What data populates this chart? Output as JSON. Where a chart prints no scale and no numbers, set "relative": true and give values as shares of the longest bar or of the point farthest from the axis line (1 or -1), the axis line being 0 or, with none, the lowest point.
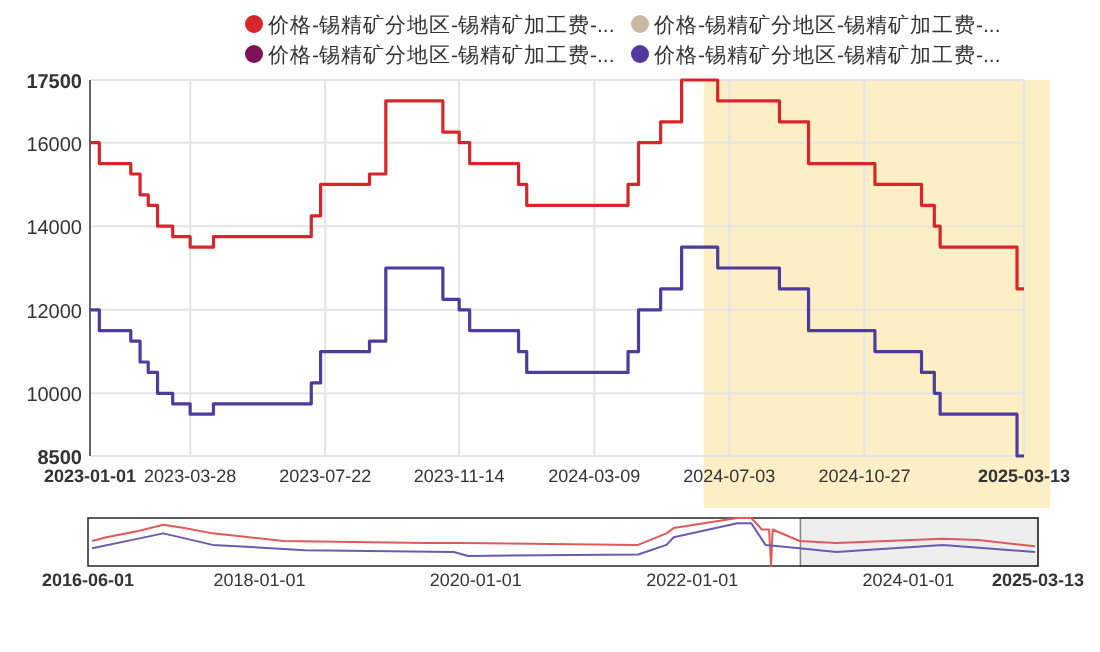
{
  "chart_data": [
    {
      "type": "step",
      "legend": "top",
      "grid": true,
      "marker": "none",
      "xlim": [
        "2023-01-01",
        "2025-03-13"
      ],
      "ylim": [
        8500,
        17500
      ],
      "xticks": [
        "2023-01-01",
        "2023-03-28",
        "2023-07-22",
        "2023-11-14",
        "2024-03-09",
        "2024-07-03",
        "2024-10-27",
        "2025-03-13"
      ],
      "yticks": [
        8500,
        10000,
        12000,
        14000,
        16000,
        17500
      ],
      "x": [
        "2023-01-01",
        "2023-01-09",
        "2023-02-05",
        "2023-02-13",
        "2023-02-20",
        "2023-02-28",
        "2023-03-13",
        "2023-03-28",
        "2023-04-17",
        "2023-07-10",
        "2023-07-18",
        "2023-08-29",
        "2023-09-12",
        "2023-10-31",
        "2023-11-14",
        "2023-11-23",
        "2024-01-04",
        "2024-01-11",
        "2024-04-07",
        "2024-04-16",
        "2024-05-05",
        "2024-05-23",
        "2024-06-23",
        "2024-08-15",
        "2024-09-09",
        "2024-11-05",
        "2024-12-15",
        "2024-12-26",
        "2024-12-31",
        "2025-03-07",
        "2025-03-13"
      ],
      "series": [
        {
          "name": "价格-锡精矿分地区-锡精矿加工费-...",
          "color": "#d7262b",
          "values": [
            16000,
            15500,
            15250,
            14750,
            14500,
            14000,
            13750,
            13500,
            13750,
            14250,
            15000,
            15250,
            17000,
            16250,
            16000,
            15500,
            15000,
            14500,
            15000,
            16000,
            16500,
            17500,
            17000,
            16500,
            15500,
            15000,
            14500,
            14000,
            13500,
            12500,
            12500
          ]
        },
        {
          "name": "价格-锡精矿分地区-锡精矿加工费-...",
          "color": "#c9b9a3",
          "values": [
            null,
            null,
            null,
            null,
            null,
            null,
            null,
            null,
            null,
            null,
            null,
            null,
            null,
            null,
            null,
            null,
            null,
            null,
            null,
            null,
            null,
            null,
            null,
            null,
            null,
            null,
            null,
            null,
            null,
            null,
            null
          ]
        },
        {
          "name": "价格-锡精矿分地区-锡精矿加工费-...",
          "color": "#7e1257",
          "values": [
            null,
            null,
            null,
            null,
            null,
            null,
            null,
            null,
            null,
            null,
            null,
            null,
            null,
            null,
            null,
            null,
            null,
            null,
            null,
            null,
            null,
            null,
            null,
            null,
            null,
            null,
            null,
            null,
            null,
            null,
            null
          ]
        },
        {
          "name": "价格-锡精矿分地区-锡精矿加工费-...",
          "color": "#4d3b9e",
          "values": [
            12000,
            11500,
            11250,
            10750,
            10500,
            10000,
            9750,
            9500,
            9750,
            10250,
            11000,
            11250,
            13000,
            12250,
            12000,
            11500,
            11000,
            10500,
            11000,
            12000,
            12500,
            13500,
            13000,
            12500,
            11500,
            11000,
            10500,
            10000,
            9500,
            8500,
            8500
          ]
        }
      ],
      "bands": [
        {
          "axis": "x",
          "from": "2024-06-11",
          "to": "2025-03-13",
          "color": "#fcefc6"
        }
      ]
    },
    {
      "type": "line",
      "relative": true,
      "xlim": [
        "2016-06-01",
        "2025-03-13"
      ],
      "xticks": [
        "2016-06-01",
        "2018-01-01",
        "2020-01-01",
        "2022-01-01",
        "2024-01-01",
        "2025-03-13"
      ],
      "series": [
        {
          "color": "#e05a5a",
          "x": [
            "2016-06-15",
            "2016-08-02",
            "2016-11-18",
            "2017-02-10",
            "2017-04-22",
            "2017-07-27",
            "2018-03-23",
            "2019-07-15",
            "2019-11-12",
            "2021-07-02",
            "2021-10-06",
            "2021-10-30",
            "2022-06-02",
            "2022-07-19",
            "2022-08-24",
            "2022-09-17",
            "2022-09-24",
            "2022-09-29",
            "2022-12-29",
            "2023-05-02",
            "2024-04-26",
            "2024-08-24",
            "2025-03-03"
          ],
          "values": [
            0.52,
            0.6,
            0.73,
            0.86,
            0.79,
            0.68,
            0.52,
            0.48,
            0.48,
            0.44,
            0.68,
            0.79,
            1,
            1,
            0.76,
            0.76,
            0,
            0.76,
            0.52,
            0.48,
            0.57,
            0.54,
            0.41
          ]
        },
        {
          "color": "#6a5ab0",
          "x": [
            "2016-06-15",
            "2016-11-18",
            "2017-02-10",
            "2017-07-27",
            "2018-06-03",
            "2019-10-19",
            "2019-12-06",
            "2021-07-02",
            "2021-10-06",
            "2021-10-30",
            "2022-06-02",
            "2022-07-19",
            "2022-09-05",
            "2022-12-29",
            "2023-05-02",
            "2024-04-26",
            "2025-03-03"
          ],
          "values": [
            0.37,
            0.57,
            0.68,
            0.44,
            0.33,
            0.29,
            0.21,
            0.24,
            0.44,
            0.6,
            0.89,
            0.89,
            0.44,
            0.37,
            0.29,
            0.44,
            0.29
          ]
        }
      ],
      "bands": [
        {
          "axis": "x",
          "from": "2023-01-01",
          "to": "2025-03-13",
          "color": "#eeeeee"
        }
      ]
    }
  ]
}
